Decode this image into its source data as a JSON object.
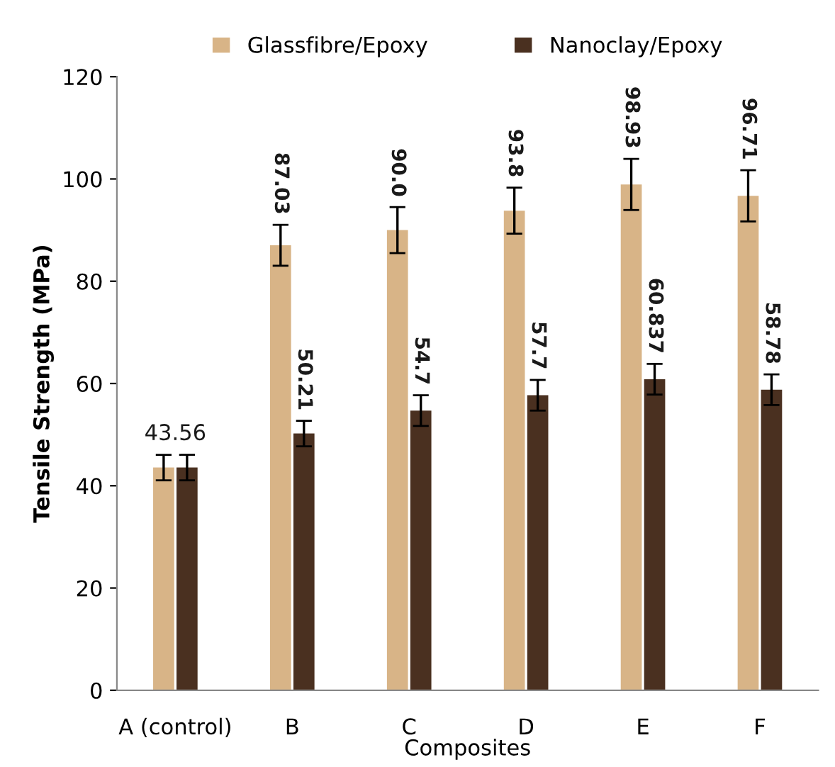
{
  "chart_data": {
    "type": "bar",
    "xlabel": "Composites",
    "ylabel": "Tensile Strength (MPa)",
    "categories": [
      "A (control)",
      "B",
      "C",
      "D",
      "E",
      "F"
    ],
    "series": [
      {
        "name": "Glassfibre/Epoxy",
        "color": "#d8b487",
        "values": [
          43.56,
          87.03,
          90.0,
          93.8,
          98.93,
          96.71
        ],
        "errors": [
          2.5,
          4,
          4.5,
          4.5,
          5,
          5
        ],
        "value_labels": [
          "43.56",
          "87.03",
          "90.0",
          "93.8",
          "98.93",
          "96.71"
        ]
      },
      {
        "name": "Nanoclay/Epoxy",
        "color": "#4a3020",
        "values": [
          43.56,
          50.21,
          54.7,
          57.7,
          60.837,
          58.78
        ],
        "errors": [
          2.5,
          2.5,
          3,
          3,
          3,
          3
        ],
        "value_labels": [
          null,
          "50.21",
          "54.7",
          "57.7",
          "60.837",
          "58.78"
        ]
      }
    ],
    "ylim": [
      0,
      120
    ],
    "yticks": [
      0,
      20,
      40,
      60,
      80,
      100,
      120
    ],
    "grid": false,
    "legend": "top"
  }
}
